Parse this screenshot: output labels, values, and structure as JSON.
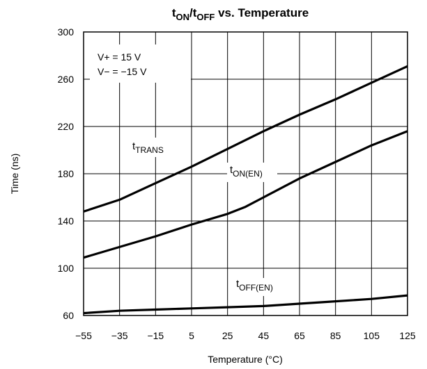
{
  "chart_data": {
    "type": "line",
    "title": {
      "main": "t",
      "sub_on": "ON",
      "slash": "/t",
      "sub_off": "OFF",
      "rest": " vs. Temperature"
    },
    "xlabel": "Temperature (°C)",
    "ylabel": "Time (ns)",
    "xlim": [
      -55,
      125
    ],
    "ylim": [
      60,
      300
    ],
    "x_ticks": [
      "−55",
      "−35",
      "−15",
      "5",
      "25",
      "45",
      "65",
      "85",
      "105",
      "125"
    ],
    "y_ticks": [
      "60",
      "100",
      "140",
      "180",
      "220",
      "260",
      "300"
    ],
    "x_tick_values": [
      -55,
      -35,
      -15,
      5,
      25,
      45,
      65,
      85,
      105,
      125
    ],
    "y_tick_values": [
      60,
      100,
      140,
      180,
      220,
      260,
      300
    ],
    "grid": true,
    "conditions": [
      "V+ = 15 V",
      "V− = −15 V"
    ],
    "series": [
      {
        "name": "tTRANS",
        "label_main": "t",
        "label_sub": "TRANS",
        "points": [
          [
            -55,
            148
          ],
          [
            -35,
            158
          ],
          [
            -15,
            172
          ],
          [
            5,
            186
          ],
          [
            25,
            201
          ],
          [
            45,
            216
          ],
          [
            65,
            230
          ],
          [
            85,
            243
          ],
          [
            105,
            257
          ],
          [
            125,
            271
          ]
        ]
      },
      {
        "name": "tON(EN)",
        "label_main": "t",
        "label_sub": "ON(EN)",
        "points": [
          [
            -55,
            109
          ],
          [
            -35,
            118
          ],
          [
            -15,
            127
          ],
          [
            5,
            137
          ],
          [
            25,
            146
          ],
          [
            35,
            152
          ],
          [
            45,
            160
          ],
          [
            65,
            176
          ],
          [
            85,
            190
          ],
          [
            105,
            204
          ],
          [
            125,
            216
          ]
        ]
      },
      {
        "name": "tOFF(EN)",
        "label_main": "t",
        "label_sub": "OFF(EN)",
        "points": [
          [
            -55,
            62
          ],
          [
            -35,
            64
          ],
          [
            -15,
            65
          ],
          [
            5,
            66
          ],
          [
            25,
            67
          ],
          [
            45,
            68
          ],
          [
            65,
            70
          ],
          [
            85,
            72
          ],
          [
            105,
            74
          ],
          [
            125,
            77
          ]
        ]
      }
    ]
  }
}
